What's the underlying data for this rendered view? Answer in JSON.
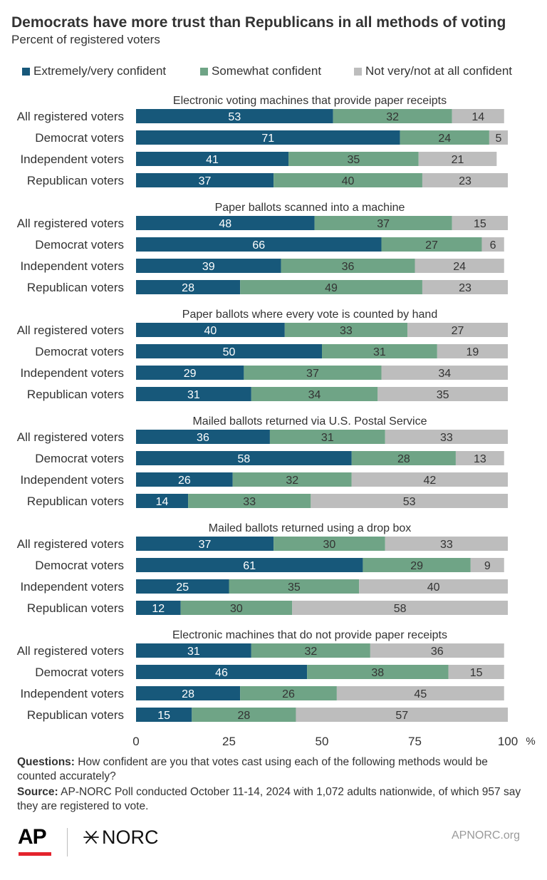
{
  "header": {
    "title": "Democrats have more trust than Republicans in all methods of voting",
    "subtitle": "Percent of registered voters"
  },
  "legend": {
    "items": [
      {
        "label": "Extremely/very confident",
        "color": "#17587a"
      },
      {
        "label": "Somewhat confident",
        "color": "#6fa486"
      },
      {
        "label": "Not very/not at all confident",
        "color": "#bdbdbd"
      }
    ]
  },
  "chart_data": {
    "type": "bar",
    "orientation": "horizontal",
    "stacked": true,
    "xlim": [
      0,
      100
    ],
    "x_ticks": [
      "0",
      "25",
      "50",
      "75",
      "100"
    ],
    "x_unit": "%",
    "series_names": [
      "Extremely/very confident",
      "Somewhat confident",
      "Not very/not at all confident"
    ],
    "colors": [
      "#17587a",
      "#6fa486",
      "#bdbdbd"
    ],
    "groups": [
      {
        "title": "Electronic voting machines that provide paper receipts",
        "rows": [
          {
            "label": "All registered voters",
            "values": [
              53,
              32,
              14
            ]
          },
          {
            "label": "Democrat voters",
            "values": [
              71,
              24,
              5
            ]
          },
          {
            "label": "Independent voters",
            "values": [
              41,
              35,
              21
            ]
          },
          {
            "label": "Republican voters",
            "values": [
              37,
              40,
              23
            ]
          }
        ]
      },
      {
        "title": "Paper ballots scanned into a machine",
        "rows": [
          {
            "label": "All registered voters",
            "values": [
              48,
              37,
              15
            ]
          },
          {
            "label": "Democrat voters",
            "values": [
              66,
              27,
              6
            ]
          },
          {
            "label": "Independent voters",
            "values": [
              39,
              36,
              24
            ]
          },
          {
            "label": "Republican voters",
            "values": [
              28,
              49,
              23
            ]
          }
        ]
      },
      {
        "title": "Paper ballots where every vote is counted by hand",
        "rows": [
          {
            "label": "All registered voters",
            "values": [
              40,
              33,
              27
            ]
          },
          {
            "label": "Democrat voters",
            "values": [
              50,
              31,
              19
            ]
          },
          {
            "label": "Independent voters",
            "values": [
              29,
              37,
              34
            ]
          },
          {
            "label": "Republican voters",
            "values": [
              31,
              34,
              35
            ]
          }
        ]
      },
      {
        "title": "Mailed ballots returned via U.S. Postal Service",
        "rows": [
          {
            "label": "All registered voters",
            "values": [
              36,
              31,
              33
            ]
          },
          {
            "label": "Democrat voters",
            "values": [
              58,
              28,
              13
            ]
          },
          {
            "label": "Independent voters",
            "values": [
              26,
              32,
              42
            ]
          },
          {
            "label": "Republican voters",
            "values": [
              14,
              33,
              53
            ]
          }
        ]
      },
      {
        "title": "Mailed ballots returned using a drop box",
        "rows": [
          {
            "label": "All registered voters",
            "values": [
              37,
              30,
              33
            ]
          },
          {
            "label": "Democrat voters",
            "values": [
              61,
              29,
              9
            ]
          },
          {
            "label": "Independent voters",
            "values": [
              25,
              35,
              40
            ]
          },
          {
            "label": "Republican voters",
            "values": [
              12,
              30,
              58
            ]
          }
        ]
      },
      {
        "title": "Electronic machines that do not provide paper receipts",
        "rows": [
          {
            "label": "All registered voters",
            "values": [
              31,
              32,
              36
            ]
          },
          {
            "label": "Democrat voters",
            "values": [
              46,
              38,
              15
            ]
          },
          {
            "label": "Independent voters",
            "values": [
              28,
              26,
              45
            ]
          },
          {
            "label": "Republican voters",
            "values": [
              15,
              28,
              57
            ]
          }
        ]
      }
    ]
  },
  "notes": {
    "questions_label": "Questions:",
    "questions_text": " How confident are you that votes cast using each of the following methods would be counted accurately?",
    "source_label": "Source:",
    "source_text": " AP-NORC Poll conducted October 11-14, 2024 with 1,072 adults nationwide, of which 957 say they are registered to vote."
  },
  "footer": {
    "ap_logo_text": "AP",
    "norc_logo_text": "NORC",
    "site": "APNORC.org"
  }
}
